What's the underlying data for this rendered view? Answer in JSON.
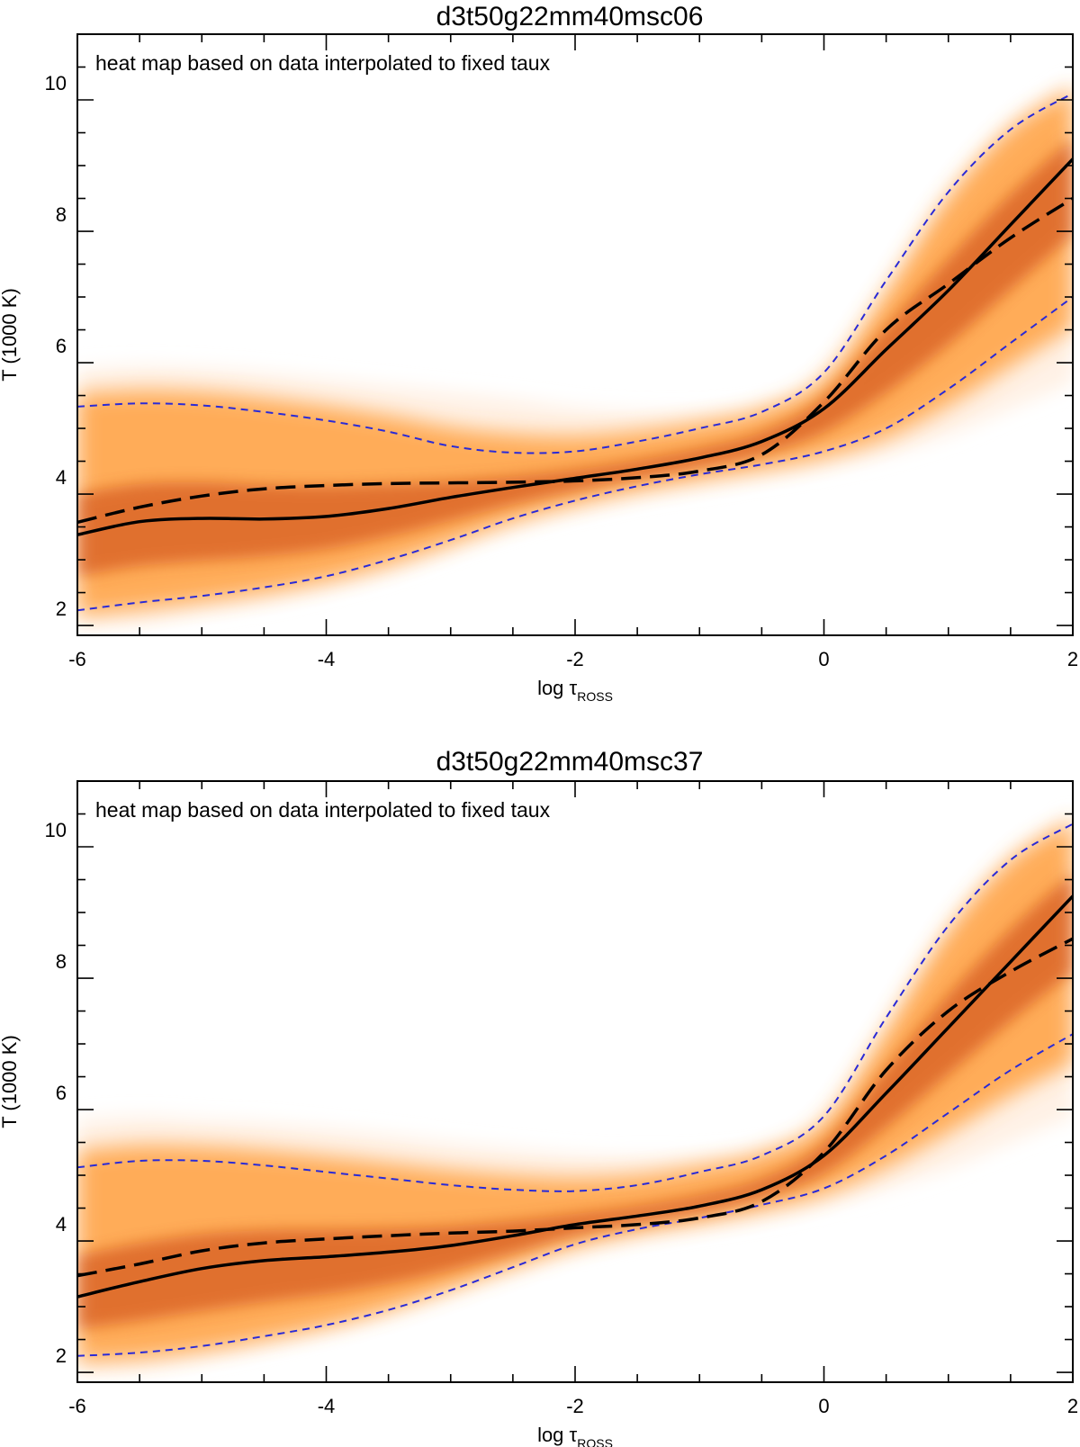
{
  "colors": {
    "background": "#ffffff",
    "axes": "#000000",
    "mean_line": "#000000",
    "envelope_line": "#2a2ad6",
    "heat_light": "#fff4ea",
    "heat_mid": "#ff8c1a",
    "heat_dark": "#c73a04"
  },
  "chart_data": [
    {
      "type": "heatmap",
      "title": "d3t50g22mm40msc06",
      "annotation": "heat map based on data interpolated to fixed taux",
      "xlabel": "log τ",
      "xlabel_subscript": "ROSS",
      "ylabel": "T (1000 K)",
      "xlim": [
        -6,
        2
      ],
      "ylim": [
        1.85,
        11.0
      ],
      "xticks": [
        -6,
        -4,
        -2,
        0,
        2
      ],
      "xtick_labels": [
        "-6",
        "-4",
        "-2",
        "0",
        "2"
      ],
      "yticks": [
        2,
        4,
        6,
        8,
        10
      ],
      "ytick_labels": [
        "2",
        "4",
        "6",
        "8",
        "10"
      ],
      "x": [
        -6,
        -5.5,
        -5,
        -4.5,
        -4,
        -3.5,
        -3,
        -2.5,
        -2,
        -1.5,
        -1,
        -0.5,
        0,
        0.5,
        1,
        1.5,
        2
      ],
      "series": [
        {
          "name": "mean",
          "style": "solid",
          "values": [
            3.38,
            3.58,
            3.63,
            3.62,
            3.66,
            3.78,
            3.95,
            4.1,
            4.24,
            4.38,
            4.55,
            4.8,
            5.3,
            6.2,
            7.1,
            8.1,
            9.1
          ]
        },
        {
          "name": "reference",
          "style": "long-dash",
          "values": [
            3.57,
            3.8,
            3.97,
            4.08,
            4.13,
            4.16,
            4.17,
            4.18,
            4.2,
            4.25,
            4.35,
            4.6,
            5.4,
            6.5,
            7.2,
            7.9,
            8.5
          ]
        },
        {
          "name": "upper envelope",
          "style": "short-dash",
          "values": [
            5.33,
            5.38,
            5.35,
            5.25,
            5.12,
            4.95,
            4.73,
            4.63,
            4.65,
            4.8,
            5.0,
            5.25,
            5.85,
            7.25,
            8.6,
            9.55,
            10.1
          ]
        },
        {
          "name": "lower envelope",
          "style": "short-dash",
          "values": [
            2.23,
            2.35,
            2.45,
            2.58,
            2.75,
            3.0,
            3.3,
            3.63,
            3.9,
            4.12,
            4.3,
            4.45,
            4.65,
            5.0,
            5.6,
            6.3,
            7.0
          ]
        },
        {
          "name": "distribution upper edge",
          "style": "fill",
          "values": [
            5.9,
            5.95,
            5.92,
            5.85,
            5.75,
            5.65,
            5.55,
            5.45,
            5.32,
            5.25,
            5.25,
            5.35,
            5.65,
            6.8,
            8.4,
            9.6,
            10.3
          ]
        },
        {
          "name": "distribution lower edge",
          "style": "fill",
          "values": [
            2.0,
            2.05,
            2.2,
            2.35,
            2.55,
            2.8,
            3.15,
            3.5,
            3.75,
            3.95,
            4.1,
            4.25,
            4.4,
            4.6,
            4.9,
            5.3,
            5.7
          ]
        }
      ]
    },
    {
      "type": "heatmap",
      "title": "d3t50g22mm40msc37",
      "annotation": "heat map based on data interpolated to fixed taux",
      "xlabel": "log τ",
      "xlabel_subscript": "ROSS",
      "ylabel": "T (1000 K)",
      "xlim": [
        -6,
        2
      ],
      "ylim": [
        1.85,
        11.0
      ],
      "xticks": [
        -6,
        -4,
        -2,
        0,
        2
      ],
      "xtick_labels": [
        "-6",
        "-4",
        "-2",
        "0",
        "2"
      ],
      "yticks": [
        2,
        4,
        6,
        8,
        10
      ],
      "ytick_labels": [
        "2",
        "4",
        "6",
        "8",
        "10"
      ],
      "x": [
        -6,
        -5.5,
        -5,
        -4.5,
        -4,
        -3.5,
        -3,
        -2.5,
        -2,
        -1.5,
        -1,
        -0.5,
        0,
        0.5,
        1,
        1.5,
        2
      ],
      "series": [
        {
          "name": "mean",
          "style": "solid",
          "values": [
            3.15,
            3.38,
            3.58,
            3.7,
            3.76,
            3.83,
            3.93,
            4.08,
            4.25,
            4.38,
            4.53,
            4.78,
            5.3,
            6.25,
            7.25,
            8.25,
            9.25
          ]
        },
        {
          "name": "reference",
          "style": "long-dash",
          "values": [
            3.47,
            3.65,
            3.85,
            3.97,
            4.03,
            4.08,
            4.12,
            4.15,
            4.2,
            4.25,
            4.35,
            4.6,
            5.35,
            6.6,
            7.5,
            8.1,
            8.6
          ]
        },
        {
          "name": "upper envelope",
          "style": "short-dash",
          "values": [
            5.12,
            5.22,
            5.22,
            5.15,
            5.05,
            4.95,
            4.85,
            4.78,
            4.76,
            4.85,
            5.05,
            5.3,
            5.9,
            7.4,
            8.8,
            9.8,
            10.35
          ]
        },
        {
          "name": "lower envelope",
          "style": "short-dash",
          "values": [
            2.25,
            2.3,
            2.4,
            2.55,
            2.72,
            2.95,
            3.25,
            3.6,
            3.95,
            4.18,
            4.35,
            4.55,
            4.8,
            5.3,
            5.95,
            6.6,
            7.15
          ]
        },
        {
          "name": "distribution upper edge",
          "style": "fill",
          "values": [
            5.85,
            5.9,
            5.85,
            5.8,
            5.72,
            5.62,
            5.5,
            5.4,
            5.32,
            5.28,
            5.3,
            5.4,
            5.7,
            6.9,
            8.6,
            9.8,
            10.5
          ]
        },
        {
          "name": "distribution lower edge",
          "style": "fill",
          "values": [
            2.0,
            2.05,
            2.2,
            2.4,
            2.65,
            2.95,
            3.3,
            3.6,
            3.85,
            4.05,
            4.2,
            4.35,
            4.55,
            4.8,
            5.1,
            5.5,
            5.9
          ]
        }
      ]
    }
  ]
}
